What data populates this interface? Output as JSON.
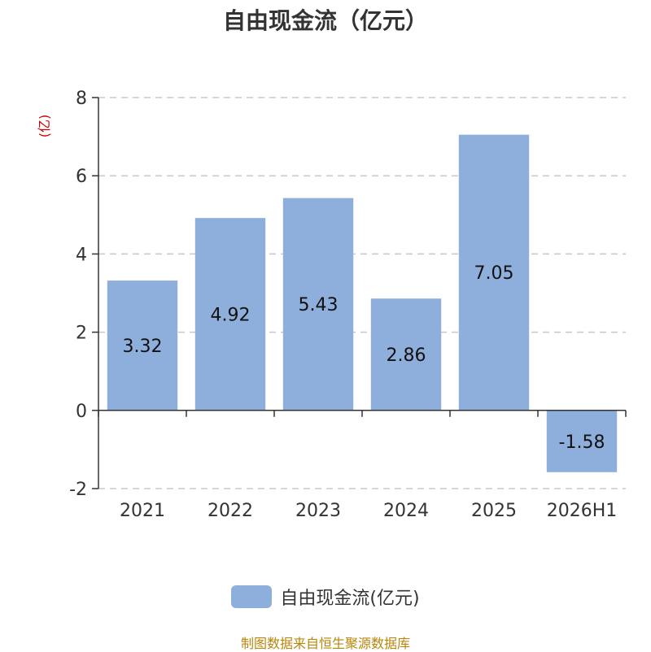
{
  "chart_data": {
    "type": "bar",
    "title": "自由现金流（亿元）",
    "ylabel": "(亿)",
    "categories": [
      "2021",
      "2022",
      "2023",
      "2024",
      "2025",
      "2026H1"
    ],
    "series": [
      {
        "name": "自由现金流(亿元)",
        "values": [
          3.32,
          4.92,
          5.43,
          2.86,
          7.05,
          -1.58
        ]
      }
    ],
    "data_labels": [
      "3.32",
      "4.92",
      "5.43",
      "2.86",
      "7.05",
      "-1.58"
    ],
    "ylim": [
      -2,
      8
    ],
    "yticks": [
      -2,
      0,
      2,
      4,
      6,
      8
    ],
    "grid": true,
    "legend": "bottom",
    "colors": {
      "bar": "#8eaedb",
      "ylabel": "#cc0000",
      "grid": "#c8c8c8",
      "axis": "#333333"
    }
  },
  "footer": {
    "source": "制图数据来自恒生聚源数据库"
  }
}
